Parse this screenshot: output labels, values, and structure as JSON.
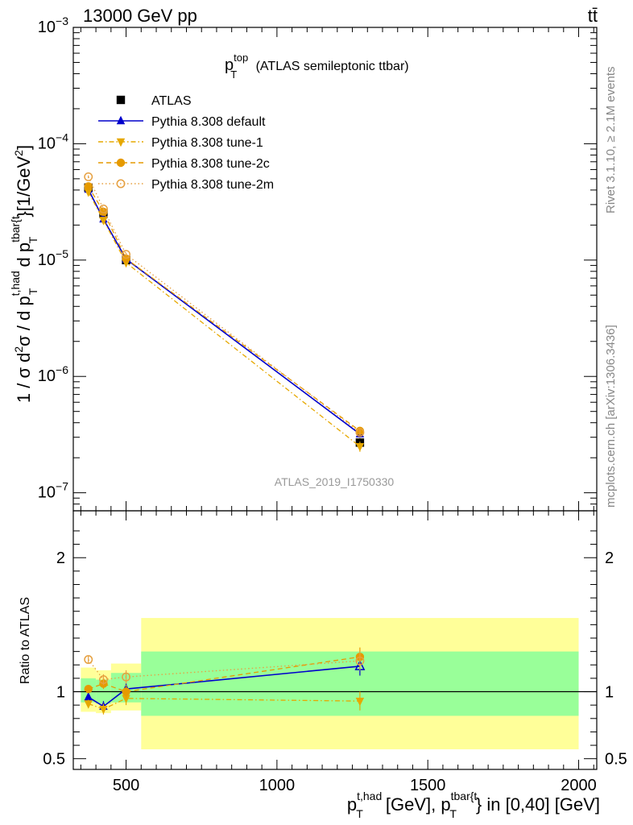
{
  "header": {
    "energy_label": "13000 GeV pp",
    "process_label": "tt̄"
  },
  "side_labels": {
    "rivet": "Rivet 3.1.10, ≥ 2.1M events",
    "mcplots": "mcplots.cern.ch [arXiv:1306.3436]"
  },
  "chart_data": [
    {
      "type": "line",
      "panel": "main",
      "title": {
        "main": "p",
        "sup": "top",
        "sub": "T",
        "suffix": " (ATLAS semileptonic ttbar)"
      },
      "ylabel": "1 / σ d²σ / d p_T^{t,had} d p_T^{tbar{t}} [1/GeV²]",
      "ylabel_parts": {
        "prefix": "1 / σ d",
        "sq1": "2",
        "mid1": "σ / d p",
        "sup1": "t,had",
        "sub1": "T",
        "mid2": " d p",
        "sup2": "tbar{t",
        "sub2": "T",
        "tail1": "}[1/GeV",
        "sq2": "2",
        "tail2": "]"
      },
      "yscale": "log",
      "xlim": [
        325,
        2060
      ],
      "ylim": [
        7e-08,
        0.001
      ],
      "yticks": [
        {
          "value": 1e-07,
          "base": "10",
          "exp": "−7"
        },
        {
          "value": 1e-06,
          "base": "10",
          "exp": "−6"
        },
        {
          "value": 1e-05,
          "base": "10",
          "exp": "−5"
        },
        {
          "value": 0.0001,
          "base": "10",
          "exp": "−4"
        },
        {
          "value": 0.001,
          "base": "10",
          "exp": "−3"
        }
      ],
      "watermark": "ATLAS_2019_I1750330",
      "legend_position": "top-left",
      "x": [
        375,
        425,
        500,
        1275
      ],
      "series": [
        {
          "name": "ATLAS",
          "kind": "data",
          "color": "#000000",
          "marker": "square",
          "dash": "none",
          "values": [
            4.2e-05,
            2.5e-05,
            1e-05,
            2.7e-07
          ],
          "errors": [
            2.5e-06,
            1.5e-06,
            6e-07,
            2.5e-08
          ]
        },
        {
          "name": "Pythia 8.308 default",
          "kind": "mc",
          "color": "#0000cc",
          "marker": "triangle-up",
          "dash": "none",
          "values": [
            4.05e-05,
            2.25e-05,
            1.02e-05,
            3.2e-07
          ],
          "errors": [
            1.2e-06,
            8e-07,
            4e-07,
            2e-08
          ]
        },
        {
          "name": "Pythia 8.308 tune-1",
          "kind": "mc",
          "color": "#e6a800",
          "marker": "triangle-down",
          "dash": "6,3,1.5,3",
          "values": [
            3.85e-05,
            2.2e-05,
            9.5e-06,
            2.5e-07
          ],
          "errors": [
            1.2e-06,
            8e-07,
            4e-07,
            2.5e-08
          ]
        },
        {
          "name": "Pythia 8.308 tune-2c",
          "kind": "mc",
          "color": "#e69a00",
          "marker": "circle",
          "dash": "6,4",
          "values": [
            4.3e-05,
            2.6e-05,
            1.03e-05,
            3.4e-07
          ],
          "errors": [
            1.2e-06,
            8e-07,
            4e-07,
            2e-08
          ]
        },
        {
          "name": "Pythia 8.308 tune-2m",
          "kind": "mc",
          "color": "#e6a040",
          "marker": "circle-open",
          "dash": "1.5,3",
          "values": [
            5.2e-05,
            2.75e-05,
            1.12e-05,
            3.3e-07
          ],
          "errors": [
            1.5e-06,
            8e-07,
            4e-07,
            2e-08
          ]
        }
      ]
    },
    {
      "type": "line",
      "panel": "ratio",
      "ylabel": "Ratio to ATLAS",
      "xlabel": "p_T^{t,had} [GeV], p_T^{tbar{t}} in [0,40] [GeV]",
      "xlabel_parts": {
        "p1": "p",
        "sup1": "t,had",
        "sub1": "T",
        "mid": " [GeV], p",
        "sup2": "tbar{t",
        "sub2": "T",
        "tail": "} in [0,40] [GeV]"
      },
      "xlim": [
        325,
        2060
      ],
      "ylim": [
        0.42,
        2.35
      ],
      "xticks": [
        {
          "value": 500,
          "label": "500"
        },
        {
          "value": 1000,
          "label": "1000"
        },
        {
          "value": 1500,
          "label": "1500"
        },
        {
          "value": 2000,
          "label": "2000"
        }
      ],
      "yticks": [
        {
          "value": 0.5,
          "label": "0.5"
        },
        {
          "value": 1,
          "label": "1"
        },
        {
          "value": 2,
          "label": "2"
        }
      ],
      "bands": [
        {
          "x0": 350,
          "x1": 400,
          "inner": [
            0.92,
            1.1
          ],
          "outer": [
            0.85,
            1.18
          ]
        },
        {
          "x0": 400,
          "x1": 450,
          "inner": [
            0.91,
            1.09
          ],
          "outer": [
            0.84,
            1.16
          ]
        },
        {
          "x0": 450,
          "x1": 550,
          "inner": [
            0.92,
            1.14
          ],
          "outer": [
            0.86,
            1.21
          ]
        },
        {
          "x0": 550,
          "x1": 2000,
          "inner": [
            0.82,
            1.3
          ],
          "outer": [
            0.57,
            1.55
          ]
        }
      ],
      "band_colors": {
        "inner": "#99ff99",
        "outer": "#ffff99"
      },
      "x": [
        375,
        425,
        500,
        1275
      ],
      "series": [
        {
          "name": "Pythia 8.308 default",
          "color": "#0000cc",
          "marker": "triangle-up",
          "dash": "none",
          "values": [
            0.96,
            0.89,
            1.02,
            1.19
          ],
          "errors": [
            0.03,
            0.04,
            0.04,
            0.07
          ]
        },
        {
          "name": "Pythia 8.308 tune-1",
          "color": "#e6a800",
          "marker": "triangle-down",
          "dash": "6,3,1.5,3",
          "values": [
            0.91,
            0.87,
            0.95,
            0.93
          ],
          "errors": [
            0.03,
            0.04,
            0.05,
            0.07
          ]
        },
        {
          "name": "Pythia 8.308 tune-2c",
          "color": "#e69a00",
          "marker": "circle",
          "dash": "6,4",
          "values": [
            1.02,
            1.06,
            1.0,
            1.26
          ],
          "errors": [
            0.03,
            0.04,
            0.05,
            0.07
          ]
        },
        {
          "name": "Pythia 8.308 tune-2m",
          "color": "#e6a040",
          "marker": "circle-open",
          "dash": "1.5,3",
          "values": [
            1.24,
            1.09,
            1.11,
            1.23
          ],
          "errors": [
            0.03,
            0.04,
            0.05,
            0.07
          ]
        }
      ]
    }
  ]
}
